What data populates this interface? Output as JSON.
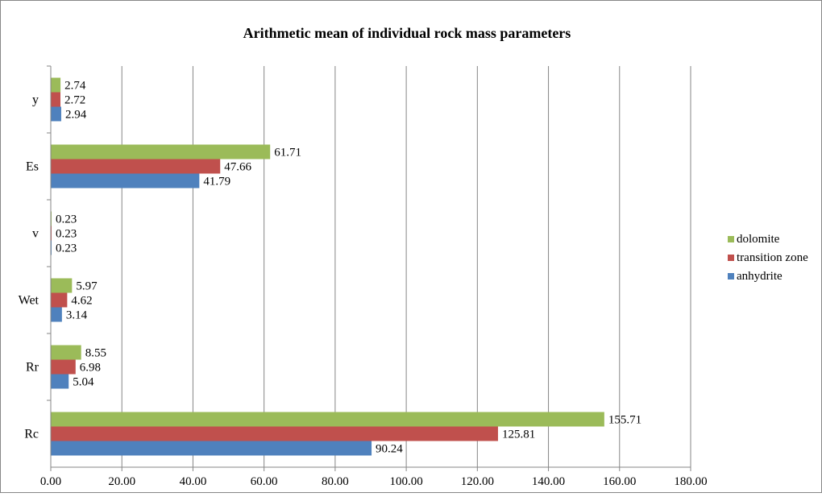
{
  "chart_data": {
    "type": "bar",
    "orientation": "horizontal",
    "title": "Arithmetic mean of individual rock mass parameters",
    "categories": [
      "y",
      "Es",
      "v",
      "Wet",
      "Rr",
      "Rc"
    ],
    "series": [
      {
        "name": "dolomite",
        "color": "#9bbb59",
        "values": [
          2.74,
          61.71,
          0.23,
          5.97,
          8.55,
          155.71
        ],
        "labels": [
          "2.74",
          "61.71",
          "0.23",
          "5.97",
          "8.55",
          "155.71"
        ]
      },
      {
        "name": "transition zone",
        "color": "#c0504d",
        "values": [
          2.72,
          47.66,
          0.23,
          4.62,
          6.98,
          125.81
        ],
        "labels": [
          "2.72",
          "47.66",
          "0.23",
          "4.62",
          "6.98",
          "125.81"
        ]
      },
      {
        "name": "anhydrite",
        "color": "#4f81bd",
        "values": [
          2.94,
          41.79,
          0.23,
          3.14,
          5.04,
          90.24
        ],
        "labels": [
          "2.94",
          "41.79",
          "0.23",
          "3.14",
          "5.04",
          "90.24"
        ]
      }
    ],
    "xlim": [
      0,
      180
    ],
    "xticks": [
      "0.00",
      "20.00",
      "40.00",
      "60.00",
      "80.00",
      "100.00",
      "120.00",
      "140.00",
      "160.00",
      "180.00"
    ],
    "grid": true,
    "legend": "right"
  }
}
